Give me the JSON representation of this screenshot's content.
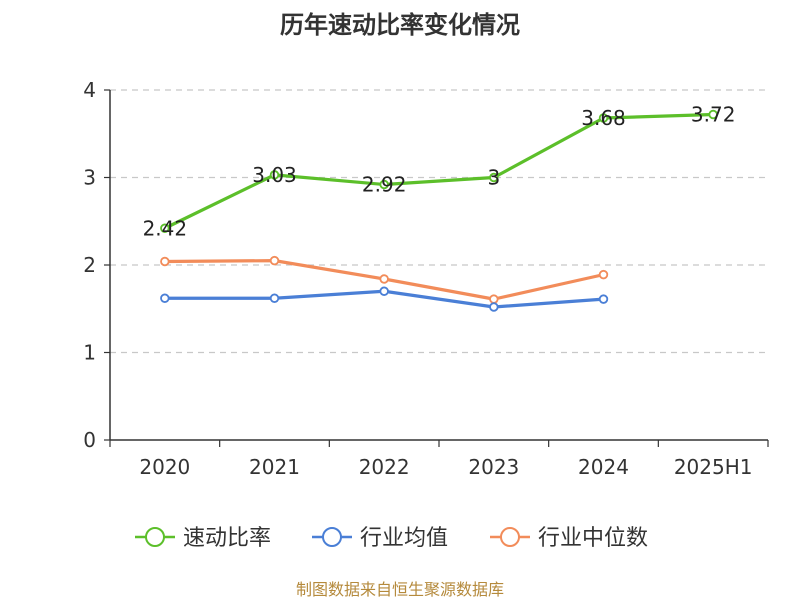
{
  "chart_data": {
    "type": "line",
    "title": "历年速动比率变化情况",
    "xlabel": "",
    "ylabel": "",
    "categories": [
      "2020",
      "2021",
      "2022",
      "2023",
      "2024",
      "2025H1"
    ],
    "ylim": [
      0,
      4
    ],
    "yticks": [
      "0",
      "1",
      "2",
      "3",
      "4"
    ],
    "grid": true,
    "legend_position": "bottom",
    "series": [
      {
        "name": "速动比率",
        "color": "#5cbf2a",
        "values": [
          2.42,
          3.03,
          2.92,
          3,
          3.68,
          3.72
        ],
        "labels": [
          "2.42",
          "3.03",
          "2.92",
          "3",
          "3.68",
          "3.72"
        ]
      },
      {
        "name": "行业均值",
        "color": "#4a7fd6",
        "values": [
          1.62,
          1.62,
          1.7,
          1.52,
          1.61,
          null
        ]
      },
      {
        "name": "行业中位数",
        "color": "#f28c5a",
        "values": [
          2.04,
          2.05,
          1.84,
          1.61,
          1.89,
          null
        ]
      }
    ]
  },
  "footer": "制图数据来自恒生聚源数据库"
}
